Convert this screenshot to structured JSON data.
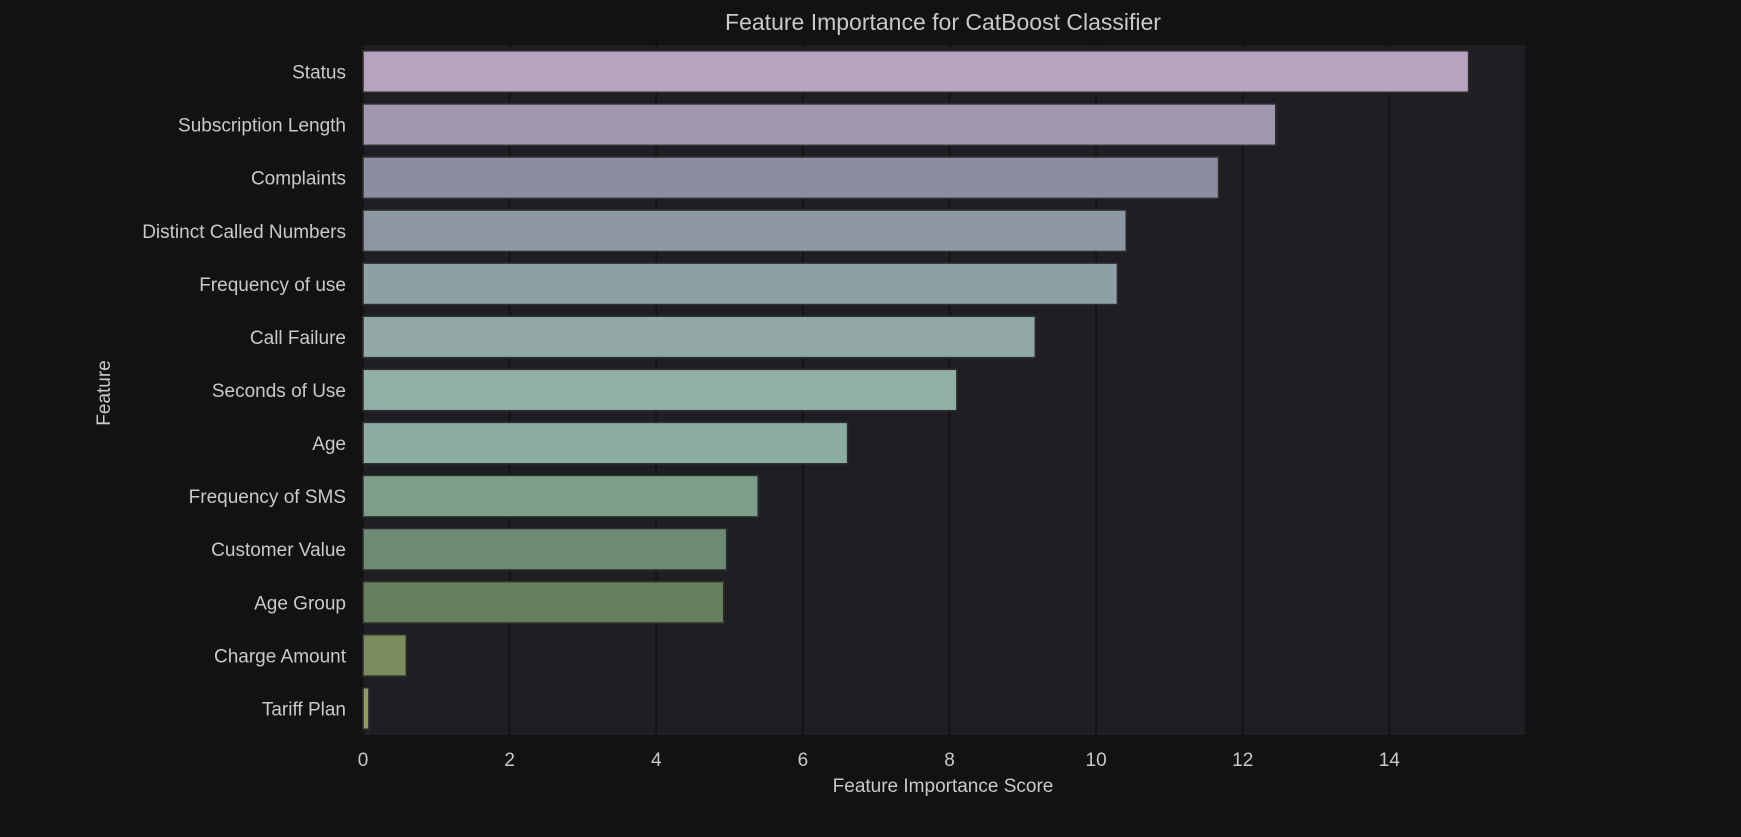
{
  "chart_data": {
    "type": "bar",
    "orientation": "horizontal",
    "title": "Feature Importance for CatBoost Classifier",
    "xlabel": "Feature Importance Score",
    "ylabel": "Feature",
    "xlim": [
      0,
      15.85
    ],
    "xticks": [
      0,
      2,
      4,
      6,
      8,
      10,
      12,
      14
    ],
    "grid": "vertical",
    "categories": [
      "Status",
      "Subscription Length",
      "Complaints",
      "Distinct Called Numbers",
      "Frequency of use",
      "Call Failure",
      "Seconds of Use",
      "Age",
      "Frequency of SMS",
      "Customer Value",
      "Age Group",
      "Charge Amount",
      "Tariff Plan"
    ],
    "values": [
      15.08,
      12.45,
      11.67,
      10.41,
      10.29,
      9.17,
      8.1,
      6.61,
      5.39,
      4.96,
      4.92,
      0.59,
      0.08
    ],
    "colors": [
      "#b5a3c0",
      "#a097ae",
      "#8b8da0",
      "#8d98a4",
      "#8ea0a6",
      "#92a8a6",
      "#8fafa7",
      "#8aada0",
      "#7e9d8a",
      "#6f8b73",
      "#657f5c",
      "#7b8d5d",
      "#8d9a60"
    ]
  }
}
